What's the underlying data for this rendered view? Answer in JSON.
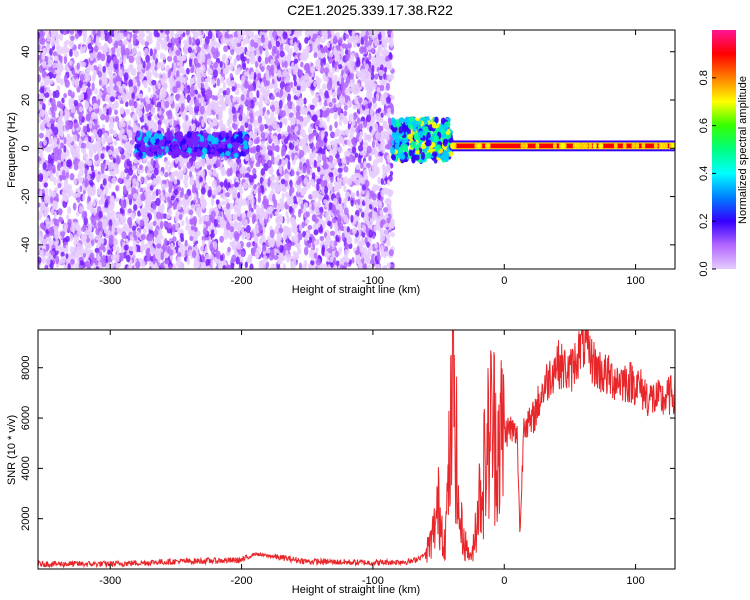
{
  "title": "C2E1.2025.339.17.38.R22",
  "colors": {
    "spectrogram": [
      "#e6ccff",
      "#b266ff",
      "#7a1fff",
      "#3300ff",
      "#00ccff",
      "#00ff99",
      "#ffff00",
      "#ff6600",
      "#ff0000",
      "#ff1493"
    ],
    "snr_line": "#e8262a",
    "frame": "#000000"
  },
  "chart_data": [
    {
      "type": "heatmap",
      "xlabel": "Height of straight line (km)",
      "ylabel": "Frequency (Hz)",
      "xlim": [
        -355,
        130
      ],
      "ylim": [
        -50,
        49
      ],
      "xticks": [
        -300,
        -200,
        -100,
        0,
        100
      ],
      "yticks": [
        -40,
        -20,
        0,
        20,
        40
      ],
      "colorbar": {
        "label": "Normalized spectral amplitude",
        "range": [
          0,
          1
        ],
        "ticks": [
          0.0,
          0.2,
          0.4,
          0.6,
          0.8
        ],
        "tick_labels": [
          "0.0",
          "0.2",
          "0.4",
          "0.6",
          "0.8"
        ]
      },
      "features": [
        {
          "x": [
            -355,
            -85
          ],
          "y": [
            -50,
            49
          ],
          "amplitude": 0.15,
          "description": "broadband noise"
        },
        {
          "x": [
            -280,
            -195
          ],
          "y": [
            -3,
            6
          ],
          "amplitude": 0.3
        },
        {
          "x": [
            -85,
            -40
          ],
          "y": [
            -5,
            12
          ],
          "amplitude": 0.45
        },
        {
          "x": [
            -40,
            130
          ],
          "y": [
            0,
            2
          ],
          "amplitude": 0.95
        }
      ]
    },
    {
      "type": "line",
      "xlabel": "Height of straight line (km)",
      "ylabel": "SNR (10 * v/v)",
      "xlim": [
        -355,
        130
      ],
      "ylim": [
        0,
        9500
      ],
      "xticks": [
        -300,
        -200,
        -100,
        0,
        100
      ],
      "yticks": [
        2000,
        4000,
        6000,
        8000
      ],
      "series": [
        {
          "x": [
            -355,
            -300,
            -250,
            -200,
            -190,
            -150,
            -100,
            -70,
            -60,
            -55,
            -50,
            -45,
            -40,
            -38,
            -35,
            -30,
            -25,
            -20,
            -15,
            -10,
            -5,
            0,
            5,
            10,
            12,
            15,
            20,
            30,
            40,
            50,
            60,
            70,
            80,
            90,
            100,
            110,
            120,
            130
          ],
          "y": [
            200,
            200,
            300,
            350,
            600,
            300,
            250,
            300,
            600,
            1200,
            2500,
            1000,
            6000,
            7600,
            2200,
            1000,
            400,
            2500,
            4000,
            5800,
            5200,
            5400,
            5600,
            5200,
            1300,
            6000,
            5700,
            7200,
            8200,
            7800,
            9000,
            8000,
            7600,
            7500,
            7400,
            6800,
            6700,
            7000
          ]
        }
      ]
    }
  ]
}
